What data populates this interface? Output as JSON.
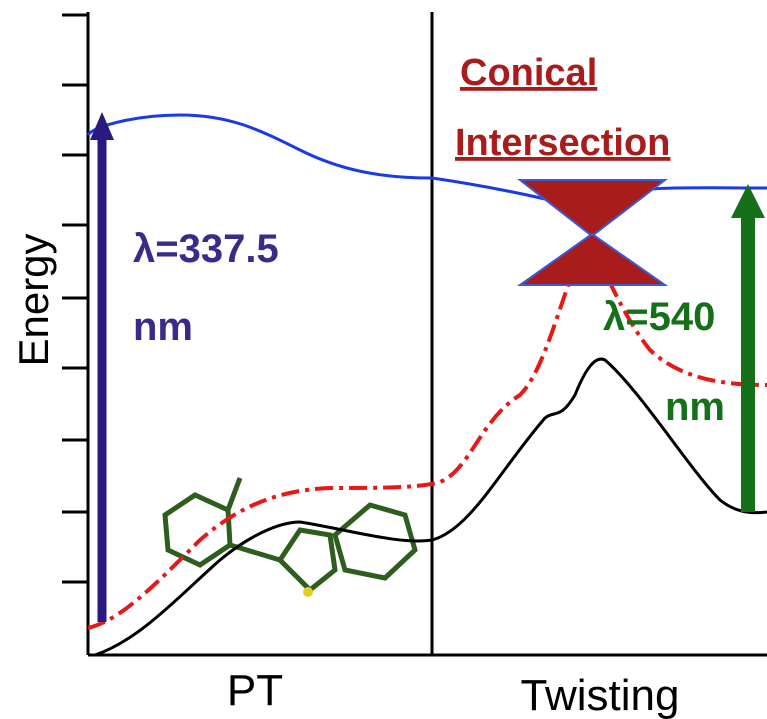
{
  "axis": {
    "y_label": "Energy",
    "x_labels": [
      "PT",
      "Twisting"
    ]
  },
  "annotations": {
    "conical_line1": "Conical",
    "conical_line2": "Intersection",
    "absorption": "λ=337.5",
    "absorption_unit": "nm",
    "emission": "λ=540",
    "emission_unit": "nm"
  }
}
